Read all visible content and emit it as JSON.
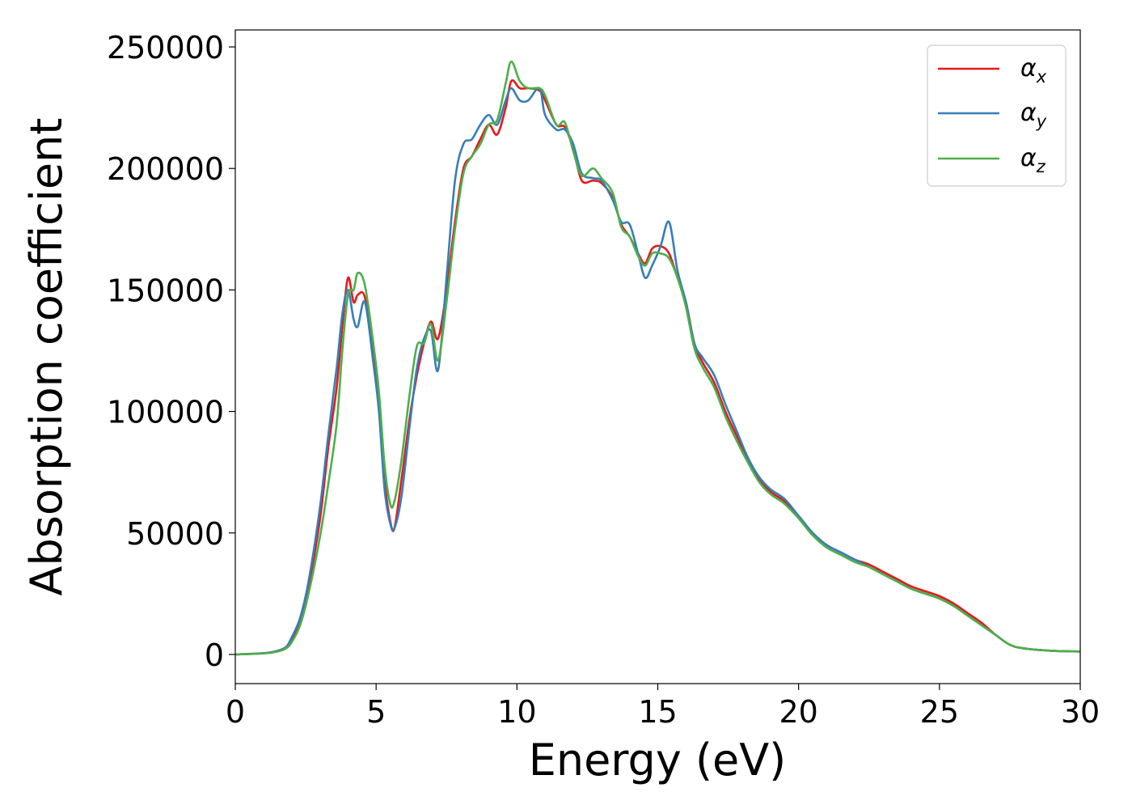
{
  "chart_data": {
    "type": "line",
    "xlabel": "Energy (eV)",
    "ylabel": "Absorption coefficient",
    "xlim": [
      0,
      30
    ],
    "ylim": [
      -12000,
      257000
    ],
    "x_ticks": [
      "0",
      "5",
      "10",
      "15",
      "20",
      "25",
      "30"
    ],
    "x_tick_values": [
      0,
      5,
      10,
      15,
      20,
      25,
      30
    ],
    "y_ticks": [
      "0",
      "50000",
      "100000",
      "150000",
      "200000",
      "250000"
    ],
    "y_tick_values": [
      0,
      50000,
      100000,
      150000,
      200000,
      250000
    ],
    "grid": false,
    "legend_position": "top-right",
    "series": [
      {
        "name": "αx",
        "symbol": "α",
        "subscript": "x",
        "color": "#e41a1c",
        "x": [
          0,
          1,
          1.5,
          1.8,
          2.0,
          2.3,
          2.6,
          3.0,
          3.3,
          3.6,
          3.8,
          4.0,
          4.2,
          4.35,
          4.6,
          4.9,
          5.1,
          5.3,
          5.5,
          5.65,
          5.9,
          6.2,
          6.45,
          6.7,
          6.95,
          7.2,
          7.5,
          7.8,
          8.1,
          8.4,
          8.7,
          9.0,
          9.3,
          9.6,
          9.8,
          10.1,
          10.4,
          10.8,
          11.0,
          11.4,
          11.7,
          12.0,
          12.3,
          12.7,
          13.0,
          13.4,
          13.7,
          14.0,
          14.3,
          14.55,
          14.8,
          15.1,
          15.4,
          15.7,
          16.0,
          16.3,
          16.6,
          17.0,
          17.4,
          17.8,
          18.2,
          18.6,
          19.0,
          19.5,
          20.0,
          20.5,
          21.0,
          21.5,
          22.0,
          22.5,
          23.0,
          23.5,
          24.0,
          24.5,
          25.0,
          25.5,
          26.0,
          26.5,
          27.0,
          27.5,
          28.0,
          29.0,
          30.0
        ],
        "y": [
          0,
          500,
          1500,
          3000,
          6000,
          14000,
          28000,
          55000,
          85000,
          110000,
          135000,
          155000,
          145000,
          148000,
          147000,
          125000,
          105000,
          72000,
          55000,
          52000,
          72000,
          98000,
          115000,
          128000,
          137000,
          130000,
          150000,
          178000,
          200000,
          205000,
          212000,
          218000,
          214000,
          225000,
          236000,
          233000,
          233000,
          232000,
          228000,
          218000,
          217000,
          208000,
          195000,
          195000,
          194000,
          188000,
          177000,
          172000,
          165000,
          161000,
          167000,
          168000,
          165000,
          155000,
          145000,
          128000,
          120000,
          112000,
          100000,
          90000,
          80000,
          72000,
          67000,
          63000,
          57000,
          50000,
          45000,
          42000,
          39000,
          37000,
          34000,
          31000,
          28000,
          26000,
          24000,
          21000,
          17000,
          13000,
          8000,
          4000,
          2500,
          1500,
          1200
        ]
      },
      {
        "name": "αy",
        "symbol": "α",
        "subscript": "y",
        "color": "#377eb8",
        "x": [
          0,
          1,
          1.5,
          1.8,
          2.0,
          2.3,
          2.6,
          3.0,
          3.3,
          3.6,
          3.8,
          4.0,
          4.2,
          4.35,
          4.6,
          4.9,
          5.1,
          5.3,
          5.5,
          5.65,
          5.9,
          6.2,
          6.45,
          6.7,
          6.95,
          7.2,
          7.5,
          7.8,
          8.1,
          8.4,
          8.7,
          9.0,
          9.3,
          9.6,
          9.8,
          10.1,
          10.4,
          10.8,
          11.0,
          11.4,
          11.7,
          12.0,
          12.3,
          12.7,
          13.0,
          13.4,
          13.7,
          14.0,
          14.3,
          14.55,
          14.8,
          15.1,
          15.4,
          15.7,
          16.0,
          16.3,
          16.6,
          17.0,
          17.4,
          17.8,
          18.2,
          18.6,
          19.0,
          19.5,
          20.0,
          20.5,
          21.0,
          21.5,
          22.0,
          22.5,
          23.0,
          23.5,
          24.0,
          24.5,
          25.0,
          25.5,
          26.0,
          26.5,
          27.0,
          27.5,
          28.0,
          29.0,
          30.0
        ],
        "y": [
          0,
          500,
          1500,
          3000,
          7000,
          15000,
          30000,
          60000,
          90000,
          118000,
          140000,
          150000,
          138000,
          135000,
          145000,
          120000,
          100000,
          68000,
          54000,
          52000,
          65000,
          95000,
          118000,
          130000,
          133000,
          117000,
          155000,
          195000,
          210000,
          212000,
          218000,
          222000,
          218000,
          228000,
          233000,
          228000,
          228000,
          233000,
          222000,
          216000,
          216000,
          210000,
          198000,
          196000,
          195000,
          187000,
          178000,
          177000,
          165000,
          155000,
          160000,
          168000,
          178000,
          158000,
          145000,
          128000,
          122000,
          115000,
          103000,
          92000,
          81000,
          73000,
          68000,
          64000,
          57000,
          50000,
          45000,
          42000,
          39000,
          36000,
          33000,
          30000,
          27000,
          25000,
          23000,
          20000,
          16000,
          12000,
          8000,
          4000,
          2500,
          1500,
          1200
        ]
      },
      {
        "name": "αz",
        "symbol": "α",
        "subscript": "z",
        "color": "#4daf4a",
        "x": [
          0,
          1,
          1.5,
          1.8,
          2.0,
          2.3,
          2.6,
          3.0,
          3.3,
          3.6,
          3.8,
          4.0,
          4.2,
          4.35,
          4.6,
          4.9,
          5.1,
          5.3,
          5.5,
          5.65,
          5.9,
          6.2,
          6.45,
          6.7,
          6.95,
          7.2,
          7.5,
          7.8,
          8.1,
          8.4,
          8.7,
          9.0,
          9.3,
          9.6,
          9.8,
          10.1,
          10.4,
          10.8,
          11.0,
          11.4,
          11.7,
          12.0,
          12.3,
          12.7,
          13.0,
          13.4,
          13.7,
          14.0,
          14.3,
          14.55,
          14.8,
          15.1,
          15.4,
          15.7,
          16.0,
          16.3,
          16.6,
          17.0,
          17.4,
          17.8,
          18.2,
          18.6,
          19.0,
          19.5,
          20.0,
          20.5,
          21.0,
          21.5,
          22.0,
          22.5,
          23.0,
          23.5,
          24.0,
          24.5,
          25.0,
          25.5,
          26.0,
          26.5,
          27.0,
          27.5,
          28.0,
          29.0,
          30.0
        ],
        "y": [
          0,
          400,
          1200,
          2500,
          5000,
          12000,
          25000,
          48000,
          70000,
          95000,
          125000,
          148000,
          150000,
          157000,
          152000,
          128000,
          108000,
          78000,
          62000,
          63000,
          80000,
          108000,
          127000,
          128000,
          136000,
          121000,
          145000,
          175000,
          198000,
          205000,
          210000,
          218000,
          220000,
          235000,
          244000,
          236000,
          233000,
          233000,
          230000,
          218000,
          219000,
          207000,
          197000,
          200000,
          196000,
          190000,
          176000,
          172000,
          164000,
          160000,
          165000,
          165000,
          163000,
          155000,
          143000,
          126000,
          118000,
          110000,
          98000,
          88000,
          79000,
          71000,
          66000,
          62000,
          56000,
          49000,
          44000,
          41000,
          38000,
          36000,
          33000,
          30000,
          27000,
          25000,
          23000,
          20000,
          16000,
          12000,
          8000,
          4000,
          2500,
          1500,
          1200
        ]
      }
    ]
  }
}
